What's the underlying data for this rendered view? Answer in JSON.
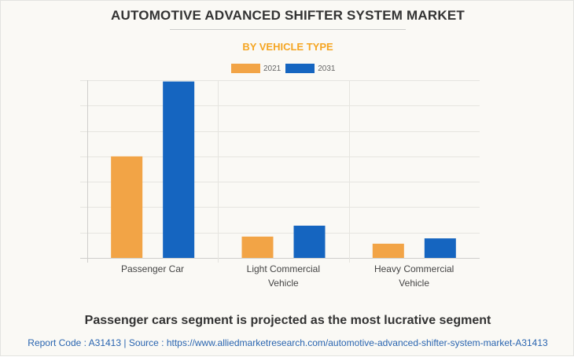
{
  "header": {
    "title": "AUTOMOTIVE ADVANCED SHIFTER SYSTEM MARKET",
    "subtitle": "BY VEHICLE TYPE"
  },
  "colors": {
    "series_2021": "#F2A446",
    "series_2031": "#1565C0",
    "subtitle": "#F5A623"
  },
  "chart_data": {
    "type": "bar",
    "title": "AUTOMOTIVE ADVANCED SHIFTER SYSTEM MARKET",
    "subtitle": "BY VEHICLE TYPE",
    "xlabel": "",
    "ylabel": "",
    "categories": [
      "Passenger Car",
      "Light Commercial Vehicle",
      "Heavy Commercial Vehicle"
    ],
    "category_lines": [
      [
        "Passenger Car"
      ],
      [
        "Light Commercial",
        "Vehicle"
      ],
      [
        "Heavy Commercial",
        "Vehicle"
      ]
    ],
    "series": [
      {
        "name": "2021",
        "color": "#F2A446",
        "values": [
          4.0,
          0.84,
          0.56
        ]
      },
      {
        "name": "2031",
        "color": "#1565C0",
        "values": [
          6.95,
          1.27,
          0.77
        ]
      }
    ],
    "ylim": [
      0,
      7
    ],
    "y_gridlines": 7,
    "y_tick_labels_shown": false,
    "grid": true,
    "legend": "top-center"
  },
  "footer": {
    "headline": "Passenger cars segment is projected as the most lucrative segment",
    "source": "Report Code : A31413  |  Source : https://www.alliedmarketresearch.com/automotive-advanced-shifter-system-market-A31413"
  }
}
